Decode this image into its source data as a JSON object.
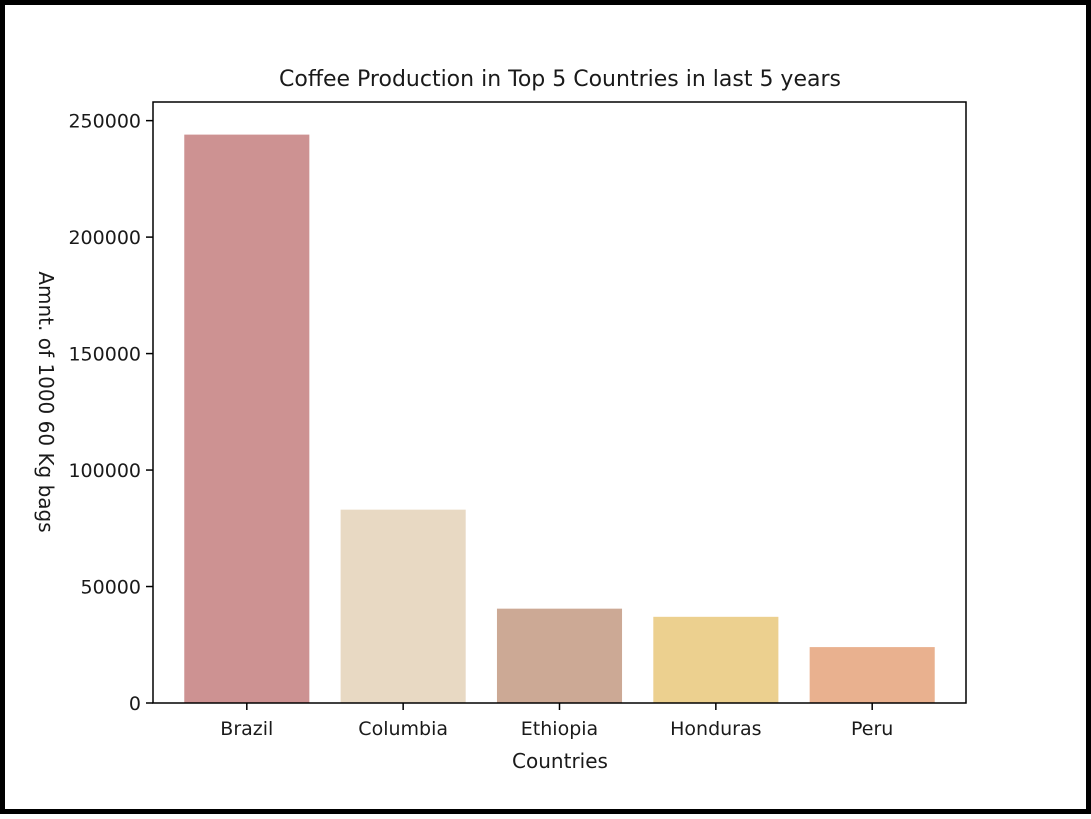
{
  "chart_data": {
    "type": "bar",
    "title": "Coffee Production in Top 5 Countries in last 5 years",
    "xlabel": "Countries",
    "ylabel": "Amnt. of 1000 60 Kg bags",
    "categories": [
      "Brazil",
      "Columbia",
      "Ethiopia",
      "Honduras",
      "Peru"
    ],
    "values": [
      244000,
      83000,
      40500,
      37000,
      24000
    ],
    "colors": [
      "#cd9292",
      "#e8d9c3",
      "#cca995",
      "#ecd08f",
      "#e9b18f"
    ],
    "ylim": [
      0,
      258000
    ],
    "yticks": [
      0,
      50000,
      100000,
      150000,
      200000,
      250000
    ],
    "ytick_labels": [
      "0",
      "50000",
      "100000",
      "150000",
      "200000",
      "250000"
    ],
    "grid": false,
    "legend": "none"
  }
}
